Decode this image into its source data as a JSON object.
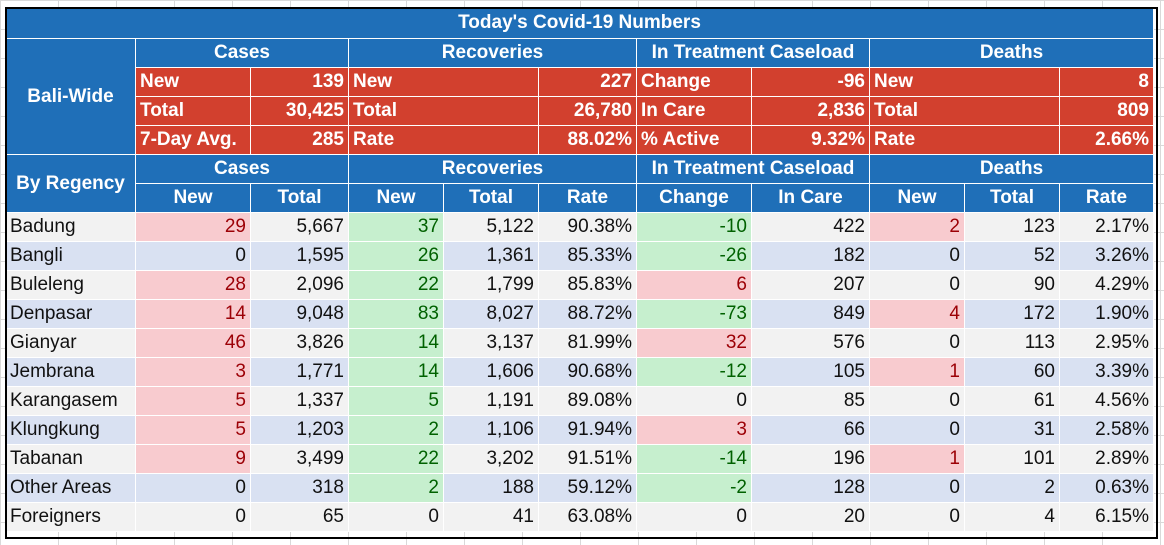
{
  "title": "Today's Covid-19 Numbers",
  "bali_wide": {
    "label": "Bali-Wide",
    "sections": [
      {
        "header": "Cases",
        "rows": [
          [
            "New",
            "139"
          ],
          [
            "Total",
            "30,425"
          ],
          [
            "7-Day Avg.",
            "285"
          ]
        ]
      },
      {
        "header": "Recoveries",
        "rows": [
          [
            "New",
            "227"
          ],
          [
            "Total",
            "26,780"
          ],
          [
            "Rate",
            "88.02%"
          ]
        ]
      },
      {
        "header": "In Treatment Caseload",
        "rows": [
          [
            "Change",
            "-96"
          ],
          [
            "In Care",
            "2,836"
          ],
          [
            "% Active",
            "9.32%"
          ]
        ]
      },
      {
        "header": "Deaths",
        "rows": [
          [
            "New",
            "8"
          ],
          [
            "Total",
            "809"
          ],
          [
            "Rate",
            "2.66%"
          ]
        ]
      }
    ]
  },
  "by_regency": {
    "label": "By Regency",
    "groups": [
      "Cases",
      "Recoveries",
      "In Treatment Caseload",
      "Deaths"
    ],
    "columns": [
      "New",
      "Total",
      "New",
      "Total",
      "Rate",
      "Change",
      "In Care",
      "New",
      "Total",
      "Rate"
    ],
    "rows": [
      {
        "name": "Badung",
        "values": [
          "29",
          "5,667",
          "37",
          "5,122",
          "90.38%",
          "-10",
          "422",
          "2",
          "123",
          "2.17%"
        ]
      },
      {
        "name": "Bangli",
        "values": [
          "0",
          "1,595",
          "26",
          "1,361",
          "85.33%",
          "-26",
          "182",
          "0",
          "52",
          "3.26%"
        ]
      },
      {
        "name": "Buleleng",
        "values": [
          "28",
          "2,096",
          "22",
          "1,799",
          "85.83%",
          "6",
          "207",
          "0",
          "90",
          "4.29%"
        ]
      },
      {
        "name": "Denpasar",
        "values": [
          "14",
          "9,048",
          "83",
          "8,027",
          "88.72%",
          "-73",
          "849",
          "4",
          "172",
          "1.90%"
        ]
      },
      {
        "name": "Gianyar",
        "values": [
          "46",
          "3,826",
          "14",
          "3,137",
          "81.99%",
          "32",
          "576",
          "0",
          "113",
          "2.95%"
        ]
      },
      {
        "name": "Jembrana",
        "values": [
          "3",
          "1,771",
          "14",
          "1,606",
          "90.68%",
          "-12",
          "105",
          "1",
          "60",
          "3.39%"
        ]
      },
      {
        "name": "Karangasem",
        "values": [
          "5",
          "1,337",
          "5",
          "1,191",
          "89.08%",
          "0",
          "85",
          "0",
          "61",
          "4.56%"
        ]
      },
      {
        "name": "Klungkung",
        "values": [
          "5",
          "1,203",
          "2",
          "1,106",
          "91.94%",
          "3",
          "66",
          "0",
          "31",
          "2.58%"
        ]
      },
      {
        "name": "Tabanan",
        "values": [
          "9",
          "3,499",
          "22",
          "3,202",
          "91.51%",
          "-14",
          "196",
          "1",
          "101",
          "2.89%"
        ]
      },
      {
        "name": "Other Areas",
        "values": [
          "0",
          "318",
          "2",
          "188",
          "59.12%",
          "-2",
          "128",
          "0",
          "2",
          "0.63%"
        ]
      },
      {
        "name": "Foreigners",
        "values": [
          "0",
          "65",
          "0",
          "41",
          "63.08%",
          "0",
          "20",
          "0",
          "4",
          "6.15%"
        ]
      }
    ]
  },
  "colors": {
    "header_blue": "#1f6fb8",
    "header_red": "#d2402e",
    "increase_fill": "#f8cbcf",
    "increase_text": "#9c0006",
    "decrease_fill": "#c6efce",
    "decrease_text": "#006100",
    "band_white": "#f2f2f2",
    "band_blue": "#d9e1f2"
  }
}
